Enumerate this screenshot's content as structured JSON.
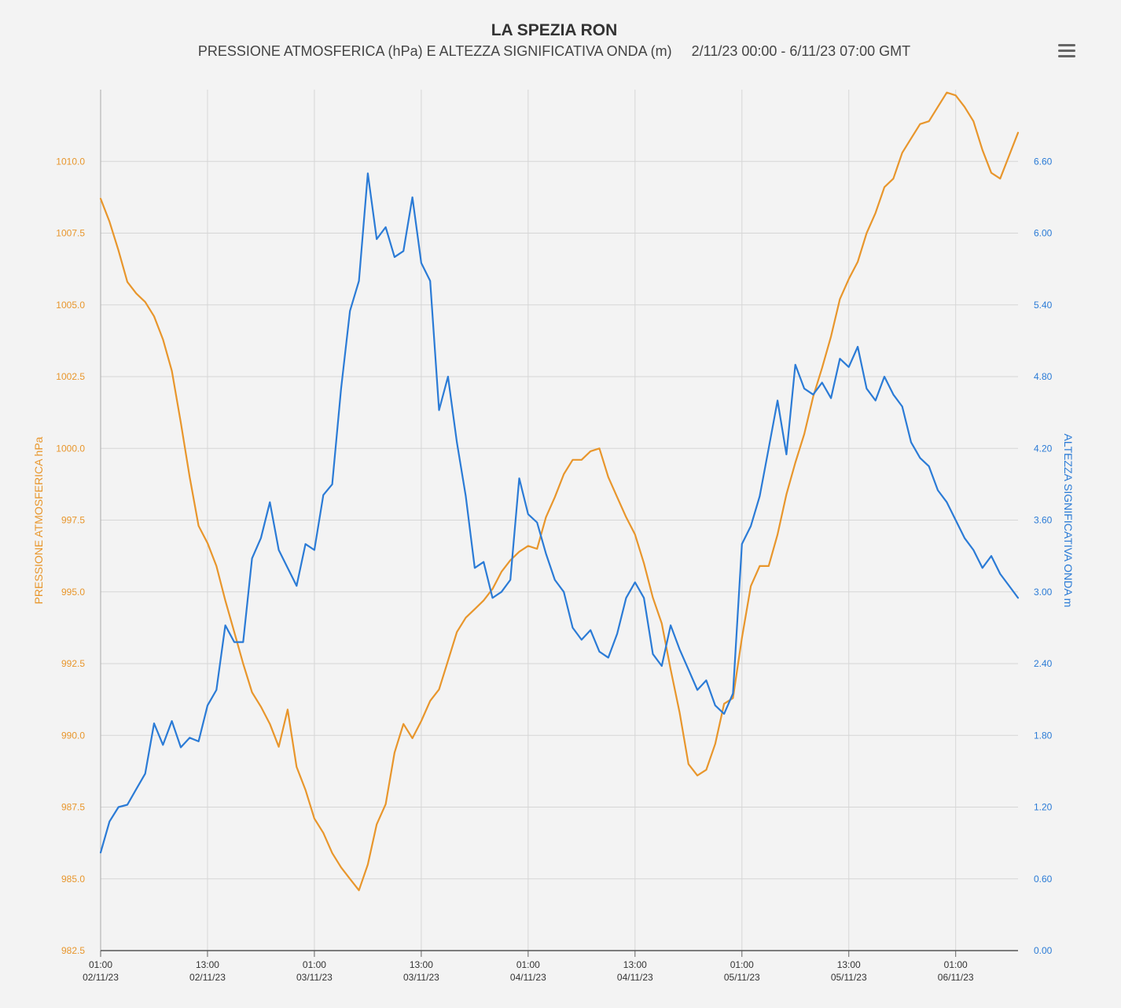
{
  "header": {
    "title": "LA SPEZIA RON",
    "subtitle": "PRESSIONE ATMOSFERICA (hPa) E ALTEZZA SIGNIFICATIVA ONDA (m)     2/11/23 00:00 - 6/11/23 07:00 GMT"
  },
  "menu": {
    "icon": "hamburger-menu-icon"
  },
  "colors": {
    "pressure": "#e8962c",
    "wave": "#2b7bd6",
    "grid": "#d6d6d6",
    "background": "#f3f3f3"
  },
  "chart_data": {
    "type": "line",
    "title": "LA SPEZIA RON",
    "y_left": {
      "label": "PRESSIONE ATMOSFERICA hPa",
      "range": [
        982.5,
        1012.5
      ],
      "ticks": [
        "982.5",
        "985.0",
        "987.5",
        "990.0",
        "992.5",
        "995.0",
        "997.5",
        "1000.0",
        "1002.5",
        "1005.0",
        "1007.5",
        "1010.0"
      ]
    },
    "y_right": {
      "label": "ALTEZZA SIGNIFICATIVA ONDA m",
      "range": [
        0.0,
        7.2
      ],
      "ticks": [
        "0.00",
        "0.60",
        "1.20",
        "1.80",
        "2.40",
        "3.00",
        "3.60",
        "4.20",
        "4.80",
        "5.40",
        "6.00",
        "6.60"
      ]
    },
    "x_axis": {
      "range_hours": [
        0,
        103
      ],
      "ticks": [
        {
          "time": "01:00",
          "date": "02/11/23"
        },
        {
          "time": "13:00",
          "date": "02/11/23"
        },
        {
          "time": "01:00",
          "date": "03/11/23"
        },
        {
          "time": "13:00",
          "date": "03/11/23"
        },
        {
          "time": "01:00",
          "date": "04/11/23"
        },
        {
          "time": "13:00",
          "date": "04/11/23"
        },
        {
          "time": "01:00",
          "date": "05/11/23"
        },
        {
          "time": "13:00",
          "date": "05/11/23"
        },
        {
          "time": "01:00",
          "date": "06/11/23"
        }
      ]
    },
    "grid": true,
    "series": [
      {
        "name": "PRESSIONE ATMOSFERICA hPa",
        "axis": "left",
        "points": [
          [
            0,
            1008.7
          ],
          [
            1,
            1007.9
          ],
          [
            2,
            1006.9
          ],
          [
            3,
            1005.8
          ],
          [
            4,
            1005.4
          ],
          [
            5,
            1005.1
          ],
          [
            6,
            1004.6
          ],
          [
            7,
            1003.8
          ],
          [
            8,
            1002.7
          ],
          [
            9,
            1000.9
          ],
          [
            10,
            999.0
          ],
          [
            11,
            997.3
          ],
          [
            12,
            996.7
          ],
          [
            13,
            995.9
          ],
          [
            14,
            994.7
          ],
          [
            15,
            993.6
          ],
          [
            16,
            992.5
          ],
          [
            17,
            991.5
          ],
          [
            18,
            991.0
          ],
          [
            19,
            990.4
          ],
          [
            20,
            989.6
          ],
          [
            21,
            990.9
          ],
          [
            22,
            988.9
          ],
          [
            23,
            988.1
          ],
          [
            24,
            987.1
          ],
          [
            25,
            986.6
          ],
          [
            26,
            985.9
          ],
          [
            27,
            985.4
          ],
          [
            28,
            985.0
          ],
          [
            29,
            984.6
          ],
          [
            30,
            985.5
          ],
          [
            31,
            986.9
          ],
          [
            32,
            987.6
          ],
          [
            33,
            989.4
          ],
          [
            34,
            990.4
          ],
          [
            35,
            989.9
          ],
          [
            36,
            990.5
          ],
          [
            37,
            991.2
          ],
          [
            38,
            991.6
          ],
          [
            39,
            992.6
          ],
          [
            40,
            993.6
          ],
          [
            41,
            994.1
          ],
          [
            42,
            994.4
          ],
          [
            43,
            994.7
          ],
          [
            44,
            995.1
          ],
          [
            45,
            995.7
          ],
          [
            46,
            996.1
          ],
          [
            47,
            996.4
          ],
          [
            48,
            996.6
          ],
          [
            49,
            996.5
          ],
          [
            50,
            997.6
          ],
          [
            51,
            998.3
          ],
          [
            52,
            999.1
          ],
          [
            53,
            999.6
          ],
          [
            54,
            999.6
          ],
          [
            55,
            999.9
          ],
          [
            56,
            1000.0
          ],
          [
            57,
            999.0
          ],
          [
            58,
            998.3
          ],
          [
            59,
            997.6
          ],
          [
            60,
            997.0
          ],
          [
            61,
            996.0
          ],
          [
            62,
            994.8
          ],
          [
            63,
            993.9
          ],
          [
            64,
            992.3
          ],
          [
            65,
            990.8
          ],
          [
            66,
            989.0
          ],
          [
            67,
            988.6
          ],
          [
            68,
            988.8
          ],
          [
            69,
            989.7
          ],
          [
            70,
            991.1
          ],
          [
            71,
            991.3
          ],
          [
            72,
            993.4
          ],
          [
            73,
            995.2
          ],
          [
            74,
            995.9
          ],
          [
            75,
            995.9
          ],
          [
            76,
            997.0
          ],
          [
            77,
            998.4
          ],
          [
            78,
            999.5
          ],
          [
            79,
            1000.5
          ],
          [
            80,
            1001.8
          ],
          [
            81,
            1002.8
          ],
          [
            82,
            1003.9
          ],
          [
            83,
            1005.2
          ],
          [
            84,
            1005.9
          ],
          [
            85,
            1006.5
          ],
          [
            86,
            1007.5
          ],
          [
            87,
            1008.2
          ],
          [
            88,
            1009.1
          ],
          [
            89,
            1009.4
          ],
          [
            90,
            1010.3
          ],
          [
            91,
            1010.8
          ],
          [
            92,
            1011.3
          ],
          [
            93,
            1011.4
          ],
          [
            94,
            1011.9
          ],
          [
            95,
            1012.4
          ],
          [
            96,
            1012.3
          ],
          [
            97,
            1011.9
          ],
          [
            98,
            1011.4
          ],
          [
            99,
            1010.4
          ],
          [
            100,
            1009.6
          ],
          [
            101,
            1009.4
          ],
          [
            102,
            1010.2
          ],
          [
            103,
            1011.0
          ]
        ]
      },
      {
        "name": "ALTEZZA SIGNIFICATIVA ONDA m",
        "axis": "right",
        "points": [
          [
            0,
            0.82
          ],
          [
            1,
            1.08
          ],
          [
            2,
            1.2
          ],
          [
            3,
            1.22
          ],
          [
            4,
            1.35
          ],
          [
            5,
            1.48
          ],
          [
            6,
            1.9
          ],
          [
            7,
            1.72
          ],
          [
            8,
            1.92
          ],
          [
            9,
            1.7
          ],
          [
            10,
            1.78
          ],
          [
            11,
            1.75
          ],
          [
            12,
            2.05
          ],
          [
            13,
            2.18
          ],
          [
            14,
            2.72
          ],
          [
            15,
            2.58
          ],
          [
            16,
            2.58
          ],
          [
            17,
            3.28
          ],
          [
            18,
            3.45
          ],
          [
            19,
            3.75
          ],
          [
            20,
            3.35
          ],
          [
            21,
            3.2
          ],
          [
            22,
            3.05
          ],
          [
            23,
            3.4
          ],
          [
            24,
            3.35
          ],
          [
            25,
            3.81
          ],
          [
            26,
            3.9
          ],
          [
            27,
            4.7
          ],
          [
            28,
            5.35
          ],
          [
            29,
            5.6
          ],
          [
            30,
            6.5
          ],
          [
            31,
            5.95
          ],
          [
            32,
            6.05
          ],
          [
            33,
            5.8
          ],
          [
            34,
            5.85
          ],
          [
            35,
            6.3
          ],
          [
            36,
            5.75
          ],
          [
            37,
            5.6
          ],
          [
            38,
            4.52
          ],
          [
            39,
            4.8
          ],
          [
            40,
            4.25
          ],
          [
            41,
            3.8
          ],
          [
            42,
            3.2
          ],
          [
            43,
            3.25
          ],
          [
            44,
            2.95
          ],
          [
            45,
            3.0
          ],
          [
            46,
            3.1
          ],
          [
            47,
            3.95
          ],
          [
            48,
            3.65
          ],
          [
            49,
            3.58
          ],
          [
            50,
            3.32
          ],
          [
            51,
            3.1
          ],
          [
            52,
            3.0
          ],
          [
            53,
            2.7
          ],
          [
            54,
            2.6
          ],
          [
            55,
            2.68
          ],
          [
            56,
            2.5
          ],
          [
            57,
            2.45
          ],
          [
            58,
            2.65
          ],
          [
            59,
            2.95
          ],
          [
            60,
            3.08
          ],
          [
            61,
            2.95
          ],
          [
            62,
            2.48
          ],
          [
            63,
            2.38
          ],
          [
            64,
            2.72
          ],
          [
            65,
            2.52
          ],
          [
            66,
            2.35
          ],
          [
            67,
            2.18
          ],
          [
            68,
            2.26
          ],
          [
            69,
            2.05
          ],
          [
            70,
            1.98
          ],
          [
            71,
            2.15
          ],
          [
            72,
            3.4
          ],
          [
            73,
            3.55
          ],
          [
            74,
            3.8
          ],
          [
            75,
            4.2
          ],
          [
            76,
            4.6
          ],
          [
            77,
            4.15
          ],
          [
            78,
            4.9
          ],
          [
            79,
            4.7
          ],
          [
            80,
            4.65
          ],
          [
            81,
            4.75
          ],
          [
            82,
            4.62
          ],
          [
            83,
            4.95
          ],
          [
            84,
            4.88
          ],
          [
            85,
            5.05
          ],
          [
            86,
            4.7
          ],
          [
            87,
            4.6
          ],
          [
            88,
            4.8
          ],
          [
            89,
            4.65
          ],
          [
            90,
            4.55
          ],
          [
            91,
            4.25
          ],
          [
            92,
            4.12
          ],
          [
            93,
            4.05
          ],
          [
            94,
            3.85
          ],
          [
            95,
            3.75
          ],
          [
            96,
            3.6
          ],
          [
            97,
            3.45
          ],
          [
            98,
            3.35
          ],
          [
            99,
            3.2
          ],
          [
            100,
            3.3
          ],
          [
            101,
            3.15
          ],
          [
            102,
            3.05
          ],
          [
            103,
            2.95
          ]
        ]
      }
    ]
  }
}
